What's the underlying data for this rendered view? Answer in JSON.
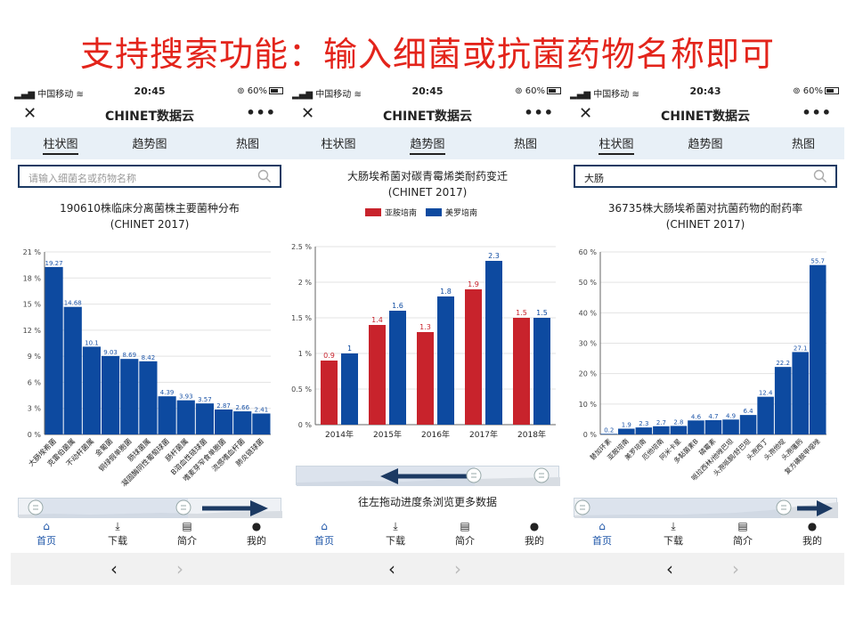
{
  "slide_title": "支持搜索功能：输入细菌或抗菌药物名称即可",
  "colors": {
    "title_red": "#e3241b",
    "bar_blue": "#0d4aa0",
    "bar_red": "#c8232c",
    "arrow_navy": "#1c3a63"
  },
  "phones": [
    {
      "status": {
        "carrier": "中国移动",
        "time": "20:45",
        "battery": "60%"
      },
      "nav": {
        "close": "✕",
        "title": "CHINET数据云",
        "more": "•••"
      },
      "tabs": [
        "柱状图",
        "趋势图",
        "热图"
      ],
      "active_tab": 0,
      "search": {
        "placeholder": "请输入细菌名或药物名称",
        "value": ""
      },
      "chart_title": "190610株临床分离菌株主要菌种分布",
      "chart_subtitle": "(CHINET 2017)",
      "bottom_tabs": [
        "首页",
        "下载",
        "简介",
        "我的"
      ],
      "browser_nav": {
        "back": "‹",
        "forward": "›"
      }
    },
    {
      "status": {
        "carrier": "中国移动",
        "time": "20:45",
        "battery": "60%"
      },
      "nav": {
        "close": "✕",
        "title": "CHINET数据云",
        "more": "•••"
      },
      "tabs": [
        "柱状图",
        "趋势图",
        "热图"
      ],
      "active_tab": 1,
      "chart_title": "大肠埃希菌对碳青霉烯类耐药变迁",
      "chart_subtitle": "(CHINET 2017)",
      "hint": "往左拖动进度条浏览更多数据",
      "bottom_tabs": [
        "首页",
        "下载",
        "简介",
        "我的"
      ],
      "browser_nav": {
        "back": "‹",
        "forward": "›"
      }
    },
    {
      "status": {
        "carrier": "中国移动",
        "time": "20:43",
        "battery": "60%"
      },
      "nav": {
        "close": "✕",
        "title": "CHINET数据云",
        "more": "•••"
      },
      "tabs": [
        "柱状图",
        "趋势图",
        "热图"
      ],
      "active_tab": 0,
      "search": {
        "placeholder": "",
        "value": "大肠"
      },
      "chart_title": "36735株大肠埃希菌对抗菌药物的耐药率",
      "chart_subtitle": "(CHINET 2017)",
      "bottom_tabs": [
        "首页",
        "下载",
        "简介",
        "我的"
      ],
      "browser_nav": {
        "back": "‹",
        "forward": "›"
      }
    }
  ],
  "chart_data": [
    {
      "type": "bar",
      "title": "190610株临床分离菌株主要菌种分布",
      "subtitle": "(CHINET 2017)",
      "categories": [
        "大肠埃希菌",
        "克雷伯菌属",
        "不动杆菌属",
        "金葡菌",
        "铜绿假单胞菌",
        "肠球菌属",
        "凝固酶阴性葡萄球菌",
        "肠杆菌属",
        "B溶血性链球菌",
        "嗜麦芽窄食单胞菌",
        "流感嗜血杆菌",
        "肺炎链球菌"
      ],
      "values": [
        19.27,
        14.68,
        10.1,
        9.03,
        8.69,
        8.42,
        4.39,
        3.93,
        3.57,
        2.87,
        2.66,
        2.41
      ],
      "labels": [
        "19.27",
        "14.68",
        "10.1",
        "9.03",
        "8.69",
        "8.42",
        "4.39",
        "3.93",
        "3.57",
        "2.87",
        "2.66",
        "2.41"
      ],
      "yticks": [
        "0 %",
        "3 %",
        "6 %",
        "9 %",
        "12 %",
        "15 %",
        "18 %",
        "21 %"
      ],
      "ylim": [
        0,
        21
      ]
    },
    {
      "type": "bar",
      "title": "大肠埃希菌对碳青霉烯类耐药变迁",
      "subtitle": "(CHINET 2017)",
      "categories": [
        "2014年",
        "2015年",
        "2016年",
        "2017年",
        "2018年"
      ],
      "series": [
        {
          "name": "亚胺培南",
          "values": [
            0.9,
            1.4,
            1.3,
            1.9,
            1.5
          ],
          "labels": [
            "0.9",
            "1.4",
            "1.3",
            "1.9",
            "1.5"
          ]
        },
        {
          "name": "美罗培南",
          "values": [
            1,
            1.6,
            1.8,
            2.3,
            1.5
          ],
          "labels": [
            "1",
            "1.6",
            "1.8",
            "2.3",
            "1.5"
          ]
        }
      ],
      "yticks": [
        "0 %",
        "0.5 %",
        "1 %",
        "1.5 %",
        "2 %",
        "2.5 %"
      ],
      "ylim": [
        0,
        2.5
      ],
      "legend": "top"
    },
    {
      "type": "bar",
      "title": "36735株大肠埃希菌对抗菌药物的耐药率",
      "subtitle": "(CHINET 2017)",
      "categories": [
        "替加环素",
        "亚胺培南",
        "美罗培南",
        "厄他培南",
        "阿米卡星",
        "多黏菌素B",
        "磷霉素",
        "哌拉西林/他唑巴坦",
        "头孢哌酮/舒巴坦",
        "头孢西丁",
        "头孢他啶",
        "头孢噻肟",
        "复方磺胺甲噁唑"
      ],
      "values": [
        0.2,
        1.9,
        2.3,
        2.7,
        2.8,
        4.6,
        4.7,
        4.9,
        6.4,
        12.4,
        22.2,
        27.1,
        55.7
      ],
      "labels": [
        "0.2",
        "1.9",
        "2.3",
        "2.7",
        "2.8",
        "4.6",
        "4.7",
        "4.9",
        "6.4",
        "12.4",
        "22.2",
        "27.1",
        "55.7"
      ],
      "yticks": [
        "0 %",
        "10 %",
        "20 %",
        "30 %",
        "40 %",
        "50 %",
        "60 %"
      ],
      "ylim": [
        0,
        60
      ]
    }
  ]
}
